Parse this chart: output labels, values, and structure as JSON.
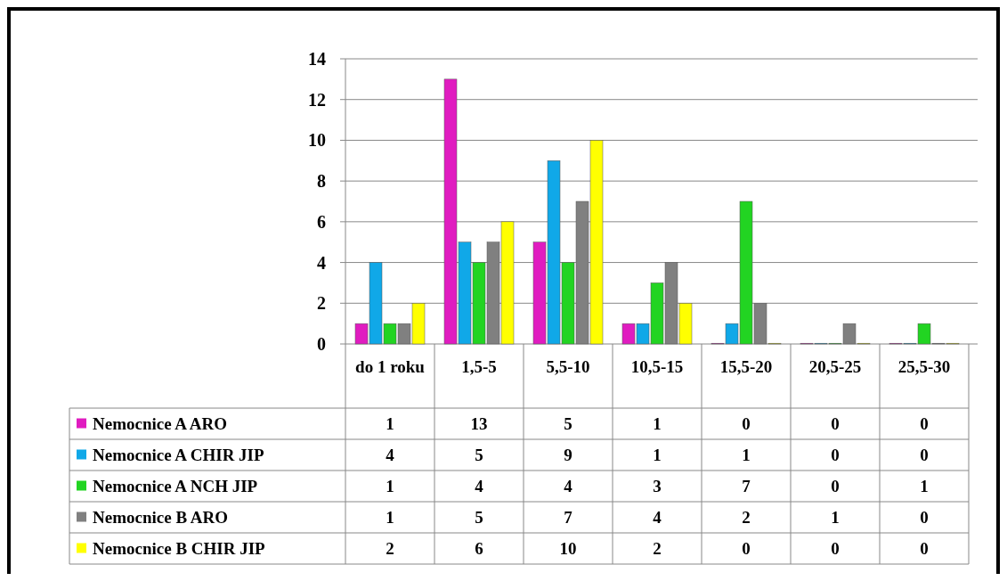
{
  "chart_data": {
    "type": "bar",
    "categories": [
      "do 1 roku",
      "1,5-5",
      "5,5-10",
      "10,5-15",
      "15,5-20",
      "20,5-25",
      "25,5-30"
    ],
    "series": [
      {
        "name": "Nemocnice A ARO",
        "color": "#e01cc0",
        "values": [
          1,
          13,
          5,
          1,
          0,
          0,
          0
        ]
      },
      {
        "name": "Nemocnice A CHIR JIP",
        "color": "#10a8e8",
        "values": [
          4,
          5,
          9,
          1,
          1,
          0,
          0
        ]
      },
      {
        "name": "Nemocnice A NCH JIP",
        "color": "#22d422",
        "values": [
          1,
          4,
          4,
          3,
          7,
          0,
          1
        ]
      },
      {
        "name": "Nemocnice B ARO",
        "color": "#808080",
        "values": [
          1,
          5,
          7,
          4,
          2,
          1,
          0
        ]
      },
      {
        "name": "Nemocnice B CHIR JIP",
        "color": "#ffff00",
        "values": [
          2,
          6,
          10,
          2,
          0,
          0,
          0
        ]
      }
    ],
    "ylim": [
      0,
      14
    ],
    "yticks": [
      0,
      2,
      4,
      6,
      8,
      10,
      12,
      14
    ],
    "grid": "y",
    "legend": "bottom",
    "data_labels": true
  }
}
